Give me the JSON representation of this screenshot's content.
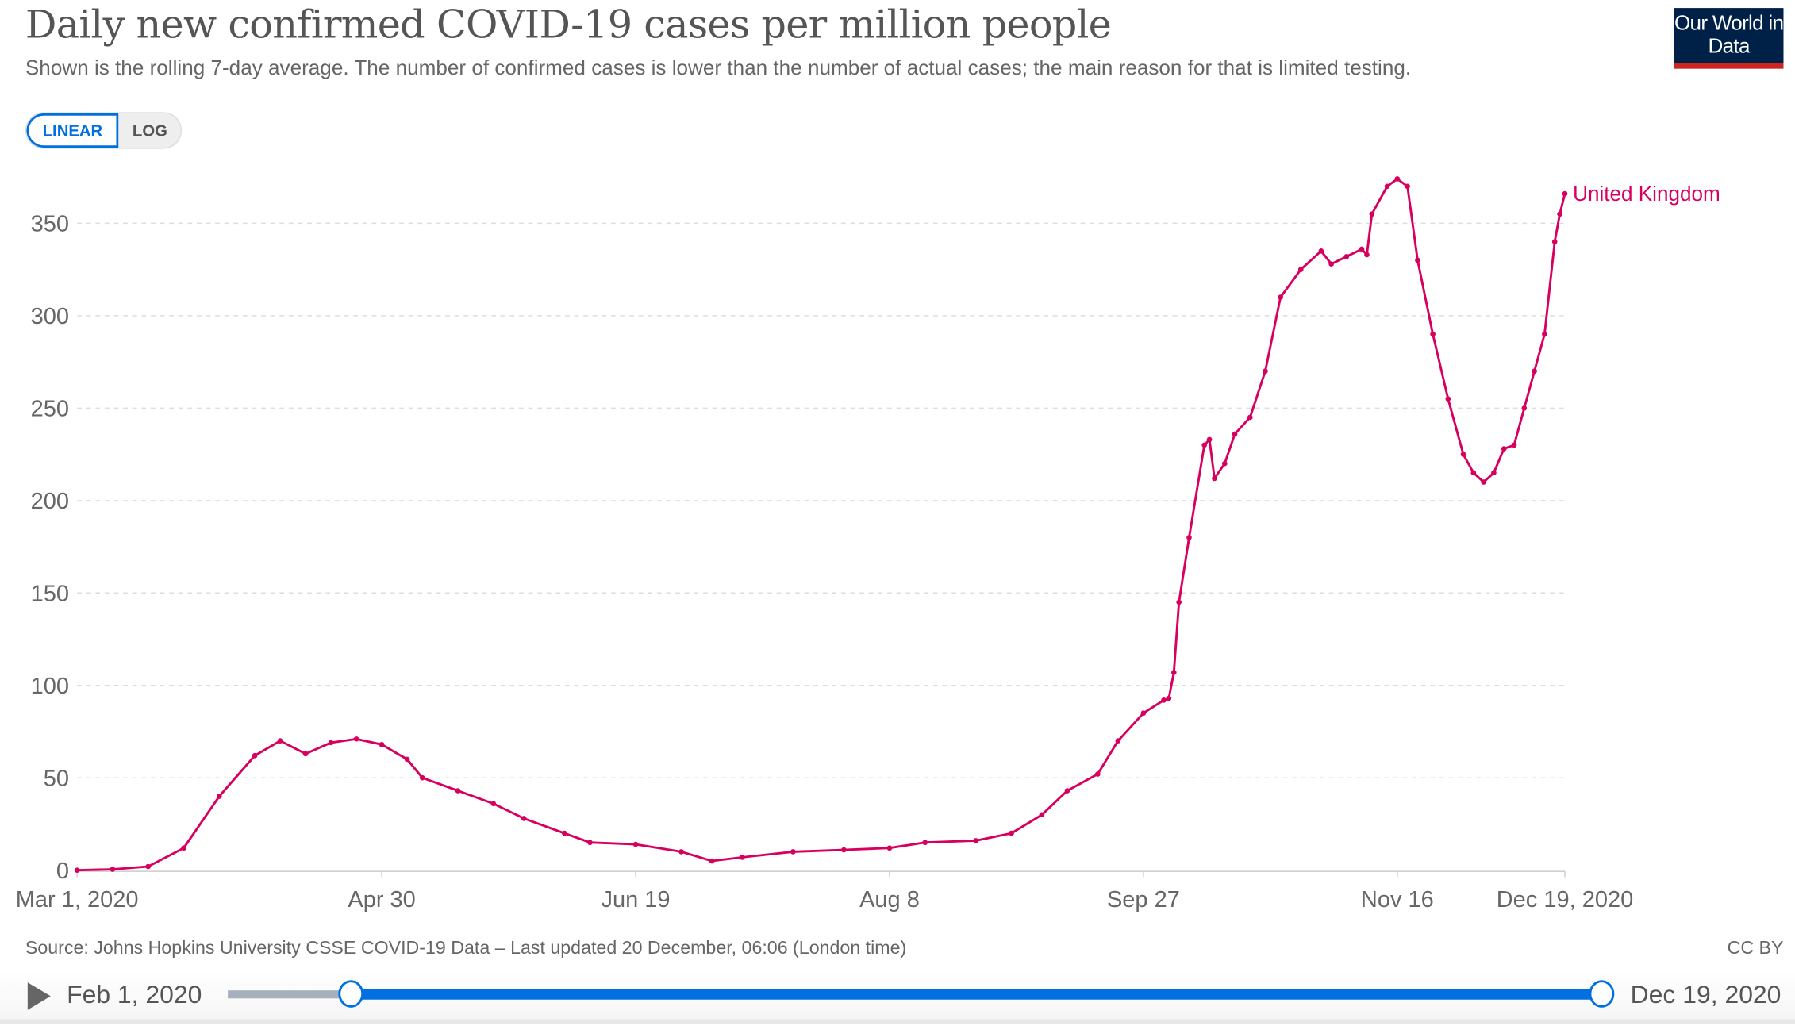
{
  "header": {
    "title": "Daily new confirmed COVID-19 cases per million people",
    "subtitle": "Shown is the rolling 7-day average. The number of confirmed cases is lower than the number of actual cases; the main reason for that is limited testing.",
    "logo_text": "Our World in Data"
  },
  "scale_toggle": {
    "linear": "LINEAR",
    "log": "LOG",
    "selected": "LINEAR"
  },
  "footer": {
    "source": "Source: Johns Hopkins University CSSE COVID-19 Data – Last updated 20 December, 06:06 (London time)",
    "license": "CC BY"
  },
  "timeline": {
    "start_label": "Feb 1, 2020",
    "end_label": "Dec 19, 2020",
    "range_start_fraction": 0.09,
    "range_end_fraction": 1.0
  },
  "colors": {
    "series": "#d8005e",
    "accent": "#0070e0",
    "grid": "#dddddd",
    "logo_bg": "#002147",
    "logo_bar": "#ce261e"
  },
  "chart_data": {
    "type": "line",
    "title": "Daily new confirmed COVID-19 cases per million people",
    "xlabel": "",
    "ylabel": "",
    "ylim": [
      0,
      350
    ],
    "xlim": [
      "2020-03-01",
      "2020-12-19"
    ],
    "y_ticks": [
      "0",
      "50",
      "100",
      "150",
      "200",
      "250",
      "300",
      "350"
    ],
    "x_ticks": [
      {
        "date": "2020-03-01",
        "label": "Mar 1, 2020"
      },
      {
        "date": "2020-04-30",
        "label": "Apr 30"
      },
      {
        "date": "2020-06-19",
        "label": "Jun 19"
      },
      {
        "date": "2020-08-08",
        "label": "Aug 8"
      },
      {
        "date": "2020-09-27",
        "label": "Sep 27"
      },
      {
        "date": "2020-11-16",
        "label": "Nov 16"
      },
      {
        "date": "2020-12-19",
        "label": "Dec 19, 2020"
      }
    ],
    "grid": "horizontal dashed",
    "series": [
      {
        "name": "United Kingdom",
        "x": [
          "2020-03-01",
          "2020-03-08",
          "2020-03-15",
          "2020-03-22",
          "2020-03-29",
          "2020-04-05",
          "2020-04-10",
          "2020-04-15",
          "2020-04-20",
          "2020-04-25",
          "2020-04-30",
          "2020-05-05",
          "2020-05-08",
          "2020-05-15",
          "2020-05-22",
          "2020-05-28",
          "2020-06-05",
          "2020-06-10",
          "2020-06-19",
          "2020-06-28",
          "2020-07-04",
          "2020-07-10",
          "2020-07-20",
          "2020-07-30",
          "2020-08-08",
          "2020-08-15",
          "2020-08-25",
          "2020-09-01",
          "2020-09-07",
          "2020-09-12",
          "2020-09-18",
          "2020-09-22",
          "2020-09-27",
          "2020-10-01",
          "2020-10-02",
          "2020-10-03",
          "2020-10-04",
          "2020-10-06",
          "2020-10-09",
          "2020-10-10",
          "2020-10-11",
          "2020-10-13",
          "2020-10-15",
          "2020-10-18",
          "2020-10-21",
          "2020-10-24",
          "2020-10-28",
          "2020-11-01",
          "2020-11-03",
          "2020-11-06",
          "2020-11-09",
          "2020-11-10",
          "2020-11-11",
          "2020-11-14",
          "2020-11-16",
          "2020-11-18",
          "2020-11-20",
          "2020-11-23",
          "2020-11-26",
          "2020-11-29",
          "2020-12-01",
          "2020-12-03",
          "2020-12-05",
          "2020-12-07",
          "2020-12-09",
          "2020-12-11",
          "2020-12-13",
          "2020-12-15",
          "2020-12-17",
          "2020-12-18",
          "2020-12-19"
        ],
        "values": [
          0,
          0.5,
          2,
          12,
          40,
          62,
          70,
          63,
          69,
          71,
          68,
          60,
          50,
          43,
          36,
          28,
          20,
          15,
          14,
          10,
          5,
          7,
          10,
          11,
          12,
          15,
          16,
          20,
          30,
          43,
          52,
          70,
          85,
          92,
          93,
          107,
          145,
          180,
          230,
          233,
          212,
          220,
          236,
          245,
          270,
          310,
          325,
          335,
          328,
          332,
          336,
          333,
          355,
          370,
          374,
          370,
          330,
          290,
          255,
          225,
          215,
          210,
          215,
          228,
          230,
          250,
          270,
          290,
          340,
          355,
          366
        ]
      }
    ]
  }
}
